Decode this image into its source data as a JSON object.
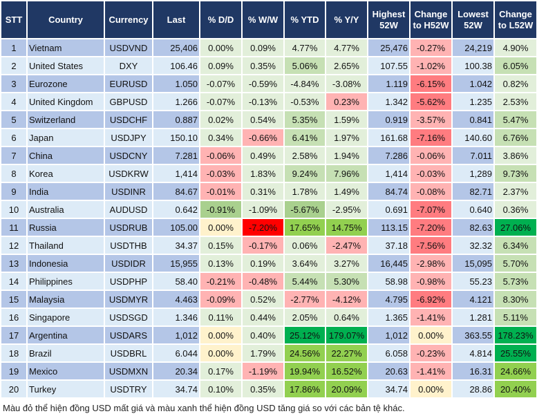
{
  "headers": [
    "STT",
    "Country",
    "Currency",
    "Last",
    "% D/D",
    "% W/W",
    "% YTD",
    "% Y/Y",
    "Highest 52W",
    "Change to H52W",
    "Lowest 52W",
    "Change to L52W"
  ],
  "palette": {
    "header": "#203864",
    "row_odd": "#b4c6e7",
    "row_even": "#ddebf7",
    "lg": "#e2efda",
    "g1": "#c6e0b4",
    "g2": "#a9d08e",
    "g3": "#92d050",
    "g4": "#00b050",
    "lr": "#ffb3b3",
    "r2": "#ff7c80",
    "r3": "#ff0000",
    "y": "#fff2cc"
  },
  "rows": [
    {
      "cells": [
        "1",
        "Vietnam",
        "USDVND",
        "25,406",
        "0.00%",
        "0.09%",
        "4.77%",
        "4.77%",
        "25,476",
        "-0.27%",
        "24,219",
        "4.90%"
      ],
      "colors": [
        "lg",
        "lg",
        "lg",
        "lg",
        "lr",
        "lg"
      ]
    },
    {
      "cells": [
        "2",
        "United States",
        "DXY",
        "106.46",
        "0.09%",
        "0.35%",
        "5.06%",
        "2.65%",
        "107.55",
        "-1.02%",
        "100.38",
        "6.05%"
      ],
      "colors": [
        "lg",
        "lg",
        "g1",
        "lg",
        "lr",
        "g1"
      ]
    },
    {
      "cells": [
        "3",
        "Eurozone",
        "EURUSD",
        "1.050",
        "-0.07%",
        "-0.59%",
        "-4.84%",
        "-3.08%",
        "1.119",
        "-6.15%",
        "1.042",
        "0.82%"
      ],
      "colors": [
        "lg",
        "lg",
        "lg",
        "lg",
        "r2",
        "lg"
      ]
    },
    {
      "cells": [
        "4",
        "United Kingdom",
        "GBPUSD",
        "1.266",
        "-0.07%",
        "-0.13%",
        "-0.53%",
        "0.23%",
        "1.342",
        "-5.62%",
        "1.235",
        "2.53%"
      ],
      "colors": [
        "lg",
        "lg",
        "lg",
        "lr",
        "r2",
        "lg"
      ]
    },
    {
      "cells": [
        "5",
        "Switzerland",
        "USDCHF",
        "0.887",
        "0.02%",
        "0.54%",
        "5.35%",
        "1.59%",
        "0.919",
        "-3.57%",
        "0.841",
        "5.47%"
      ],
      "colors": [
        "lg",
        "lg",
        "g1",
        "lg",
        "lr",
        "g1"
      ]
    },
    {
      "cells": [
        "6",
        "Japan",
        "USDJPY",
        "150.10",
        "0.34%",
        "-0.66%",
        "6.41%",
        "1.97%",
        "161.68",
        "-7.16%",
        "140.60",
        "6.76%"
      ],
      "colors": [
        "lg",
        "lr",
        "g1",
        "lg",
        "r2",
        "g1"
      ]
    },
    {
      "cells": [
        "7",
        "China",
        "USDCNY",
        "7.281",
        "-0.06%",
        "0.49%",
        "2.58%",
        "1.94%",
        "7.286",
        "-0.06%",
        "7.011",
        "3.86%"
      ],
      "colors": [
        "lr",
        "lg",
        "lg",
        "lg",
        "lr",
        "lg"
      ]
    },
    {
      "cells": [
        "8",
        "Korea",
        "USDKRW",
        "1,414",
        "-0.03%",
        "1.83%",
        "9.24%",
        "7.96%",
        "1,414",
        "-0.03%",
        "1,289",
        "9.73%"
      ],
      "colors": [
        "lr",
        "lg",
        "g1",
        "g1",
        "lr",
        "g1"
      ]
    },
    {
      "cells": [
        "9",
        "India",
        "USDINR",
        "84.67",
        "-0.01%",
        "0.31%",
        "1.78%",
        "1.49%",
        "84.74",
        "-0.08%",
        "82.71",
        "2.37%"
      ],
      "colors": [
        "lr",
        "lg",
        "lg",
        "lg",
        "lr",
        "lg"
      ]
    },
    {
      "cells": [
        "10",
        "Australia",
        "AUDUSD",
        "0.642",
        "-0.91%",
        "-1.09%",
        "-5.67%",
        "-2.95%",
        "0.691",
        "-7.07%",
        "0.640",
        "0.36%"
      ],
      "colors": [
        "g2",
        "lg",
        "g2",
        "lg",
        "r2",
        "lg"
      ]
    },
    {
      "cells": [
        "11",
        "Russia",
        "USDRUB",
        "105.00",
        "0.00%",
        "-7.20%",
        "17.65%",
        "14.75%",
        "113.15",
        "-7.20%",
        "82.63",
        "27.06%"
      ],
      "colors": [
        "y",
        "r3",
        "g3",
        "g3",
        "r2",
        "g4"
      ]
    },
    {
      "cells": [
        "12",
        "Thailand",
        "USDTHB",
        "34.37",
        "0.15%",
        "-0.17%",
        "0.06%",
        "-2.47%",
        "37.18",
        "-7.56%",
        "32.32",
        "6.34%"
      ],
      "colors": [
        "lg",
        "lr",
        "lg",
        "lr",
        "r2",
        "g1"
      ]
    },
    {
      "cells": [
        "13",
        "Indonesia",
        "USDIDR",
        "15,955",
        "0.13%",
        "0.19%",
        "3.64%",
        "3.27%",
        "16,445",
        "-2.98%",
        "15,095",
        "5.70%"
      ],
      "colors": [
        "lg",
        "lg",
        "lg",
        "lg",
        "lr",
        "g1"
      ]
    },
    {
      "cells": [
        "14",
        "Philippines",
        "USDPHP",
        "58.40",
        "-0.21%",
        "-0.48%",
        "5.44%",
        "5.30%",
        "58.98",
        "-0.98%",
        "55.23",
        "5.73%"
      ],
      "colors": [
        "lr",
        "lr",
        "g1",
        "g1",
        "lr",
        "g1"
      ]
    },
    {
      "cells": [
        "15",
        "Malaysia",
        "USDMYR",
        "4.463",
        "-0.09%",
        "0.52%",
        "-2.77%",
        "-4.12%",
        "4.795",
        "-6.92%",
        "4.121",
        "8.30%"
      ],
      "colors": [
        "lr",
        "lg",
        "lr",
        "lr",
        "r2",
        "g1"
      ]
    },
    {
      "cells": [
        "16",
        "Singapore",
        "USDSGD",
        "1.346",
        "0.11%",
        "0.44%",
        "2.05%",
        "0.64%",
        "1.365",
        "-1.41%",
        "1.281",
        "5.11%"
      ],
      "colors": [
        "lg",
        "lg",
        "lg",
        "lg",
        "lr",
        "g1"
      ]
    },
    {
      "cells": [
        "17",
        "Argentina",
        "USDARS",
        "1,012",
        "0.00%",
        "0.40%",
        "25.12%",
        "179.07%",
        "1,012",
        "0.00%",
        "363.55",
        "178.23%"
      ],
      "colors": [
        "y",
        "lg",
        "g4",
        "g4",
        "y",
        "g4"
      ]
    },
    {
      "cells": [
        "18",
        "Brazil",
        "USDBRL",
        "6.044",
        "0.00%",
        "1.79%",
        "24.56%",
        "22.27%",
        "6.058",
        "-0.23%",
        "4.814",
        "25.55%"
      ],
      "colors": [
        "y",
        "lg",
        "g3",
        "g3",
        "lr",
        "g4"
      ]
    },
    {
      "cells": [
        "19",
        "Mexico",
        "USDMXN",
        "20.34",
        "0.17%",
        "-1.19%",
        "19.94%",
        "16.52%",
        "20.63",
        "-1.41%",
        "16.31",
        "24.66%"
      ],
      "colors": [
        "lg",
        "lr",
        "g3",
        "g3",
        "lr",
        "g3"
      ]
    },
    {
      "cells": [
        "20",
        "Turkey",
        "USDTRY",
        "34.74",
        "0.10%",
        "0.35%",
        "17.86%",
        "20.09%",
        "34.74",
        "0.00%",
        "28.86",
        "20.40%"
      ],
      "colors": [
        "lg",
        "lg",
        "g3",
        "g3",
        "y",
        "g3"
      ]
    }
  ],
  "note": "Màu đỏ thể hiện đồng USD mất giá và màu xanh thể hiện đồng USD tăng giá so với các bản tệ khác."
}
